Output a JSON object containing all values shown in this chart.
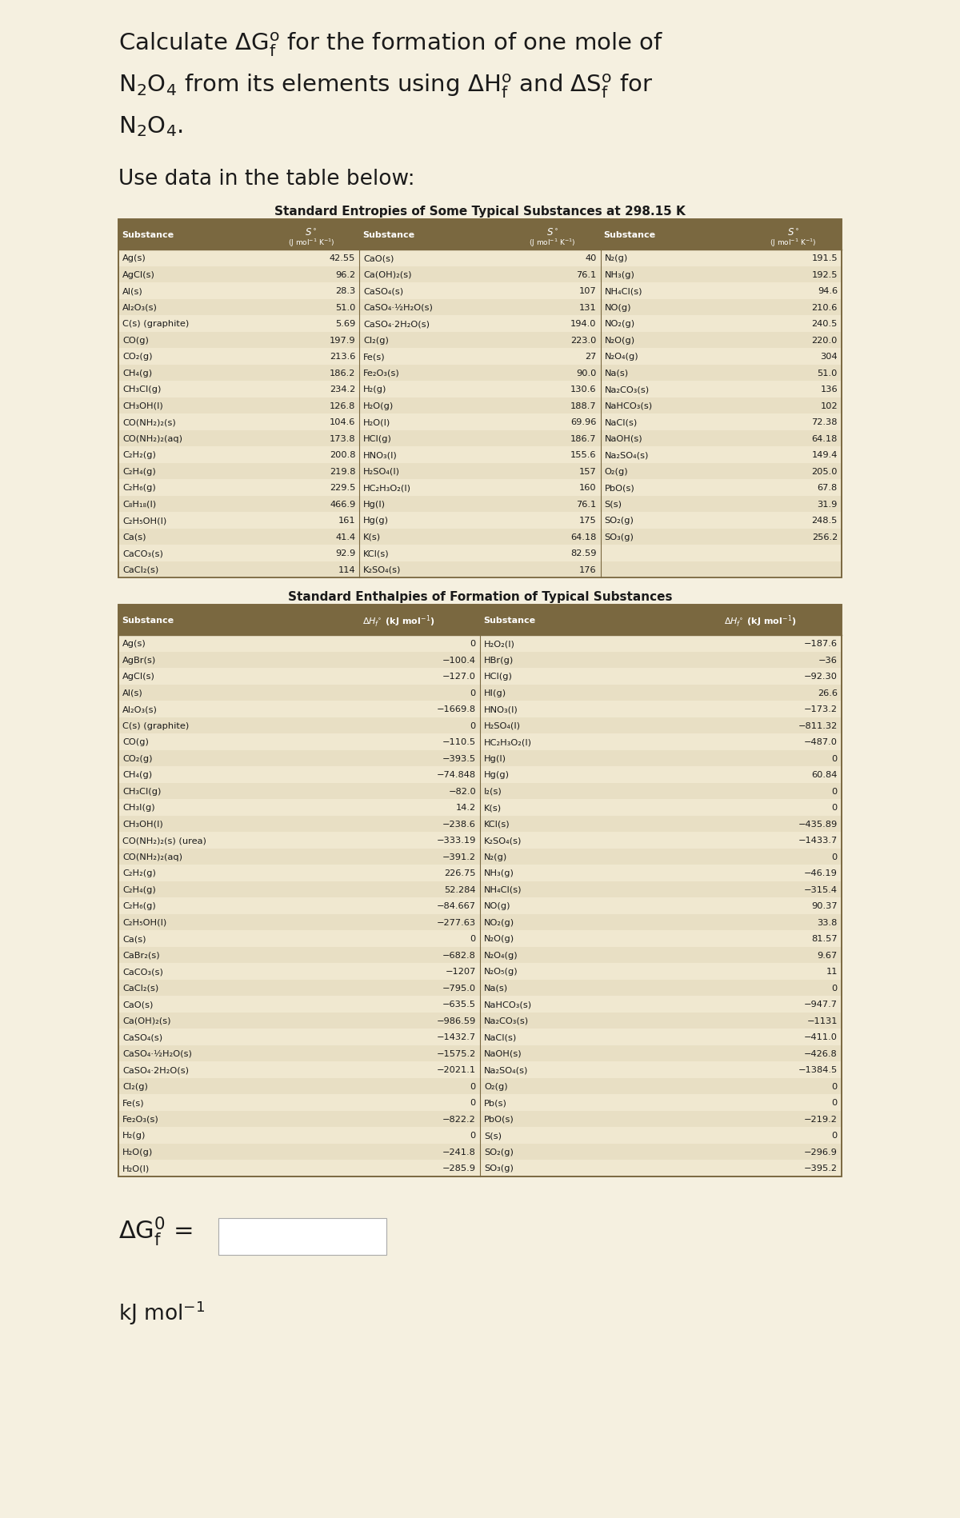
{
  "entropy_col1": [
    [
      "Ag(s)",
      "42.55"
    ],
    [
      "AgCl(s)",
      "96.2"
    ],
    [
      "Al(s)",
      "28.3"
    ],
    [
      "Al₂O₃(s)",
      "51.0"
    ],
    [
      "C(s) (graphite)",
      "5.69"
    ],
    [
      "CO(g)",
      "197.9"
    ],
    [
      "CO₂(g)",
      "213.6"
    ],
    [
      "CH₄(g)",
      "186.2"
    ],
    [
      "CH₃Cl(g)",
      "234.2"
    ],
    [
      "CH₃OH(l)",
      "126.8"
    ],
    [
      "CO(NH₂)₂(s)",
      "104.6"
    ],
    [
      "CO(NH₂)₂(aq)",
      "173.8"
    ],
    [
      "C₂H₂(g)",
      "200.8"
    ],
    [
      "C₂H₄(g)",
      "219.8"
    ],
    [
      "C₂H₆(g)",
      "229.5"
    ],
    [
      "C₈H₁₈(l)",
      "466.9"
    ],
    [
      "C₂H₅OH(l)",
      "161"
    ],
    [
      "Ca(s)",
      "41.4"
    ],
    [
      "CaCO₃(s)",
      "92.9"
    ],
    [
      "CaCl₂(s)",
      "114"
    ]
  ],
  "entropy_col2": [
    [
      "CaO(s)",
      "40"
    ],
    [
      "Ca(OH)₂(s)",
      "76.1"
    ],
    [
      "CaSO₄(s)",
      "107"
    ],
    [
      "CaSO₄·½H₂O(s)",
      "131"
    ],
    [
      "CaSO₄·2H₂O(s)",
      "194.0"
    ],
    [
      "Cl₂(g)",
      "223.0"
    ],
    [
      "Fe(s)",
      "27"
    ],
    [
      "Fe₂O₃(s)",
      "90.0"
    ],
    [
      "H₂(g)",
      "130.6"
    ],
    [
      "H₂O(g)",
      "188.7"
    ],
    [
      "H₂O(l)",
      "69.96"
    ],
    [
      "HCl(g)",
      "186.7"
    ],
    [
      "HNO₃(l)",
      "155.6"
    ],
    [
      "H₂SO₄(l)",
      "157"
    ],
    [
      "HC₂H₃O₂(l)",
      "160"
    ],
    [
      "Hg(l)",
      "76.1"
    ],
    [
      "Hg(g)",
      "175"
    ],
    [
      "K(s)",
      "64.18"
    ],
    [
      "KCl(s)",
      "82.59"
    ],
    [
      "K₂SO₄(s)",
      "176"
    ]
  ],
  "entropy_col3": [
    [
      "N₂(g)",
      "191.5"
    ],
    [
      "NH₃(g)",
      "192.5"
    ],
    [
      "NH₄Cl(s)",
      "94.6"
    ],
    [
      "NO(g)",
      "210.6"
    ],
    [
      "NO₂(g)",
      "240.5"
    ],
    [
      "N₂O(g)",
      "220.0"
    ],
    [
      "N₂O₄(g)",
      "304"
    ],
    [
      "Na(s)",
      "51.0"
    ],
    [
      "Na₂CO₃(s)",
      "136"
    ],
    [
      "NaHCO₃(s)",
      "102"
    ],
    [
      "NaCl(s)",
      "72.38"
    ],
    [
      "NaOH(s)",
      "64.18"
    ],
    [
      "Na₂SO₄(s)",
      "149.4"
    ],
    [
      "O₂(g)",
      "205.0"
    ],
    [
      "PbO(s)",
      "67.8"
    ],
    [
      "S(s)",
      "31.9"
    ],
    [
      "SO₂(g)",
      "248.5"
    ],
    [
      "SO₃(g)",
      "256.2"
    ]
  ],
  "enthalpy_col1": [
    [
      "Ag(s)",
      "0"
    ],
    [
      "AgBr(s)",
      "−100.4"
    ],
    [
      "AgCl(s)",
      "−127.0"
    ],
    [
      "Al(s)",
      "0"
    ],
    [
      "Al₂O₃(s)",
      "−1669.8"
    ],
    [
      "C(s) (graphite)",
      "0"
    ],
    [
      "CO(g)",
      "−110.5"
    ],
    [
      "CO₂(g)",
      "−393.5"
    ],
    [
      "CH₄(g)",
      "−74.848"
    ],
    [
      "CH₃Cl(g)",
      "−82.0"
    ],
    [
      "CH₃I(g)",
      "14.2"
    ],
    [
      "CH₃OH(l)",
      "−238.6"
    ],
    [
      "CO(NH₂)₂(s) (urea)",
      "−333.19"
    ],
    [
      "CO(NH₂)₂(aq)",
      "−391.2"
    ],
    [
      "C₂H₂(g)",
      "226.75"
    ],
    [
      "C₂H₄(g)",
      "52.284"
    ],
    [
      "C₂H₆(g)",
      "−84.667"
    ],
    [
      "C₂H₅OH(l)",
      "−277.63"
    ],
    [
      "Ca(s)",
      "0"
    ],
    [
      "CaBr₂(s)",
      "−682.8"
    ],
    [
      "CaCO₃(s)",
      "−1207"
    ],
    [
      "CaCl₂(s)",
      "−795.0"
    ],
    [
      "CaO(s)",
      "−635.5"
    ],
    [
      "Ca(OH)₂(s)",
      "−986.59"
    ],
    [
      "CaSO₄(s)",
      "−1432.7"
    ],
    [
      "CaSO₄·½H₂O(s)",
      "−1575.2"
    ],
    [
      "CaSO₄·2H₂O(s)",
      "−2021.1"
    ],
    [
      "Cl₂(g)",
      "0"
    ],
    [
      "Fe(s)",
      "0"
    ],
    [
      "Fe₂O₃(s)",
      "−822.2"
    ],
    [
      "H₂(g)",
      "0"
    ],
    [
      "H₂O(g)",
      "−241.8"
    ],
    [
      "H₂O(l)",
      "−285.9"
    ]
  ],
  "enthalpy_col2": [
    [
      "H₂O₂(l)",
      "−187.6"
    ],
    [
      "HBr(g)",
      "−36"
    ],
    [
      "HCl(g)",
      "−92.30"
    ],
    [
      "HI(g)",
      "26.6"
    ],
    [
      "HNO₃(l)",
      "−173.2"
    ],
    [
      "H₂SO₄(l)",
      "−811.32"
    ],
    [
      "HC₂H₃O₂(l)",
      "−487.0"
    ],
    [
      "Hg(l)",
      "0"
    ],
    [
      "Hg(g)",
      "60.84"
    ],
    [
      "I₂(s)",
      "0"
    ],
    [
      "K(s)",
      "0"
    ],
    [
      "KCl(s)",
      "−435.89"
    ],
    [
      "K₂SO₄(s)",
      "−1433.7"
    ],
    [
      "N₂(g)",
      "0"
    ],
    [
      "NH₃(g)",
      "−46.19"
    ],
    [
      "NH₄Cl(s)",
      "−315.4"
    ],
    [
      "NO(g)",
      "90.37"
    ],
    [
      "NO₂(g)",
      "33.8"
    ],
    [
      "N₂O(g)",
      "81.57"
    ],
    [
      "N₂O₄(g)",
      "9.67"
    ],
    [
      "N₂O₅(g)",
      "11"
    ],
    [
      "Na(s)",
      "0"
    ],
    [
      "NaHCO₃(s)",
      "−947.7"
    ],
    [
      "Na₂CO₃(s)",
      "−1131"
    ],
    [
      "NaCl(s)",
      "−411.0"
    ],
    [
      "NaOH(s)",
      "−426.8"
    ],
    [
      "Na₂SO₄(s)",
      "−1384.5"
    ],
    [
      "O₂(g)",
      "0"
    ],
    [
      "Pb(s)",
      "0"
    ],
    [
      "PbO(s)",
      "−219.2"
    ],
    [
      "S(s)",
      "0"
    ],
    [
      "SO₂(g)",
      "−296.9"
    ],
    [
      "SO₃(g)",
      "−395.2"
    ]
  ],
  "bg_color": "#f5f0e0",
  "header_bg": "#7a6840",
  "table_bg": "#f0e8d0",
  "row_alt_bg": "#e8dfc4",
  "border_color": "#7a6840",
  "text_color": "#1a1a1a",
  "title_fontsize": 21,
  "subtitle_fontsize": 19,
  "table_title_fontsize": 11,
  "header_fontsize": 8,
  "data_fontsize": 8.2
}
